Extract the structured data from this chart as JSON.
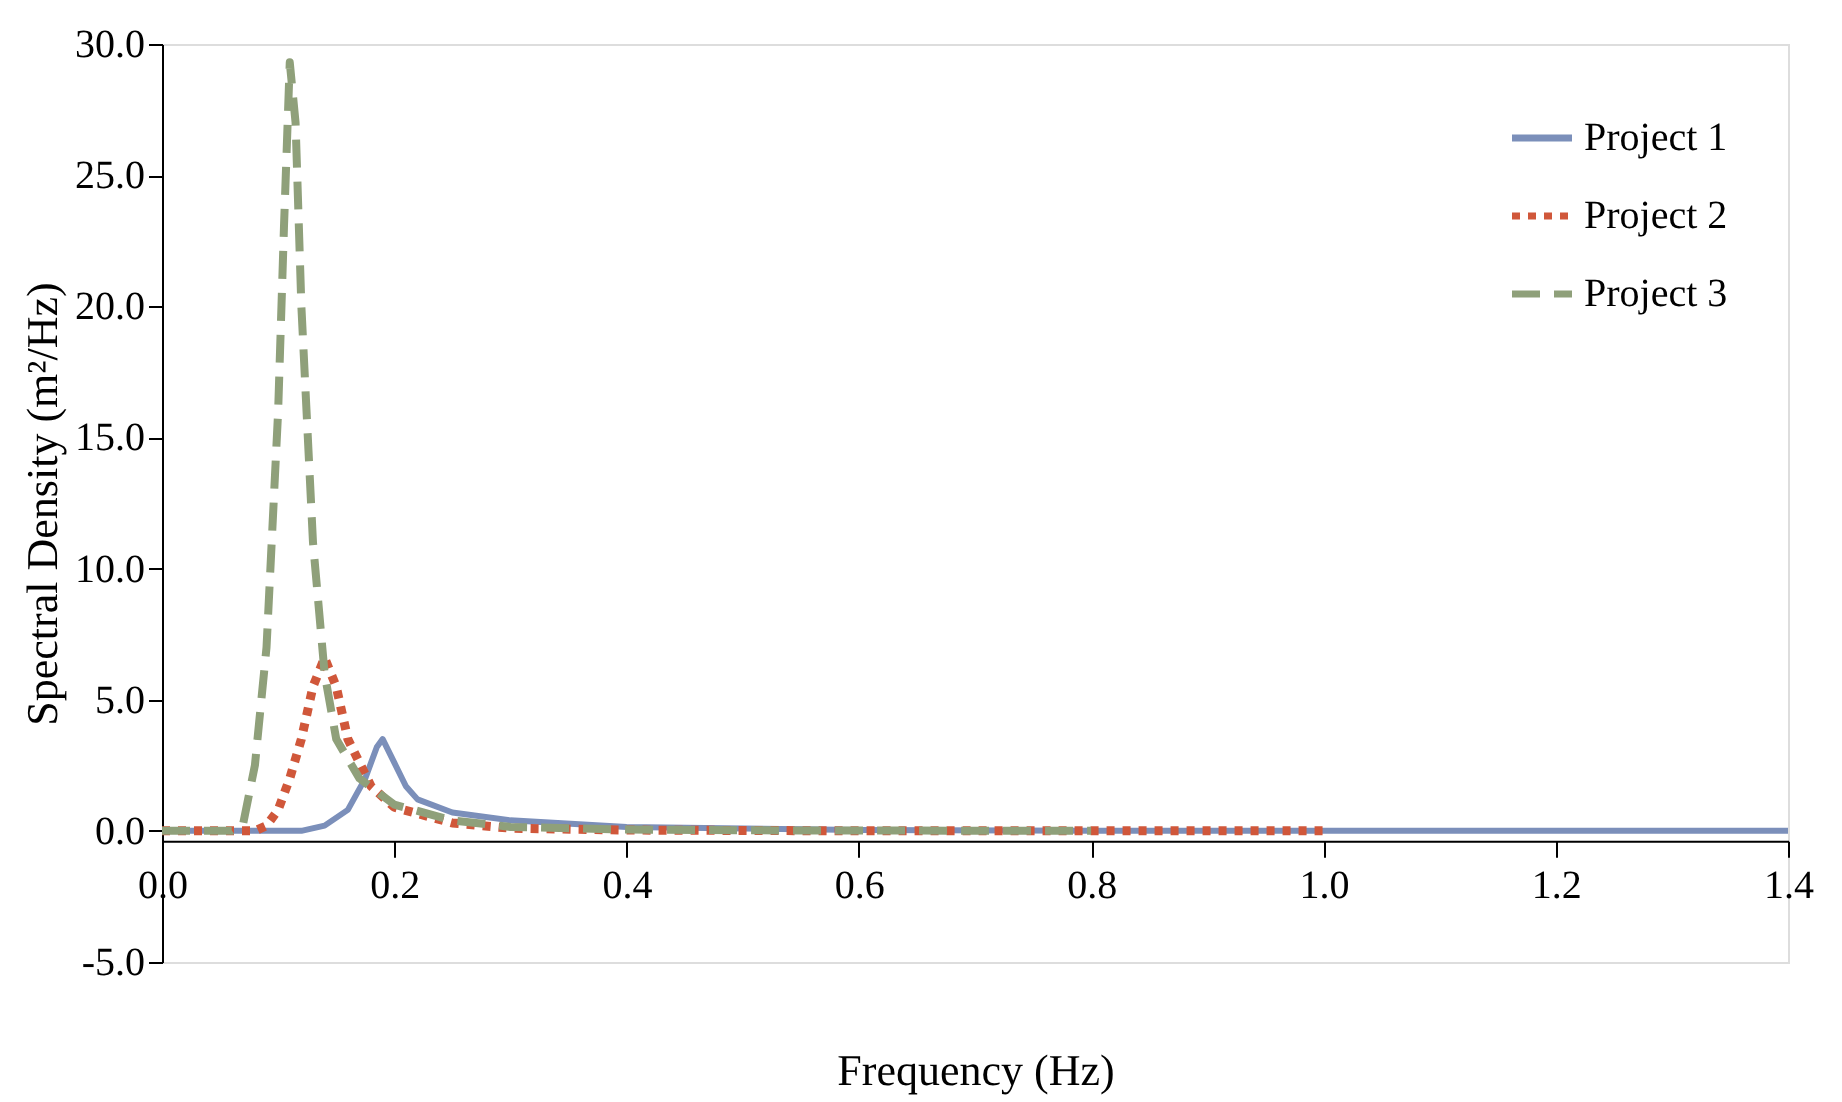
{
  "chart_data": {
    "type": "line",
    "xlabel": "Frequency (Hz)",
    "ylabel": "Spectral Density (m²/Hz)",
    "xlim": [
      0,
      1.4
    ],
    "xticks": [
      {
        "value": 0,
        "label": "0.0"
      },
      0.2,
      0.4,
      0.6,
      0.8,
      {
        "value": 1,
        "label": "1.0"
      },
      1.2,
      1.4
    ],
    "ylim": [
      -5,
      30
    ],
    "yticks": [
      {
        "value": -5,
        "label": "-5.0"
      },
      {
        "value": 0,
        "label": "0.0"
      },
      {
        "value": 5,
        "label": "5.0"
      },
      {
        "value": 10,
        "label": "10.0"
      },
      {
        "value": 15,
        "label": "15.0"
      },
      {
        "value": 20,
        "label": "20.0"
      },
      {
        "value": 25,
        "label": "25.0"
      },
      {
        "value": 30,
        "label": "30.0"
      }
    ],
    "grid": false,
    "legend": "top right",
    "marker": "none",
    "series": [
      {
        "name": "Project 1",
        "color": "#7b8fba",
        "line_style": "solid",
        "x": [
          0,
          0.12,
          0.14,
          0.16,
          0.175,
          0.185,
          0.19,
          0.2,
          0.21,
          0.22,
          0.25,
          0.3,
          0.4,
          0.6,
          0.8,
          1.4
        ],
        "values": [
          0,
          0,
          0.2,
          0.8,
          2,
          3.2,
          3.5,
          2.6,
          1.7,
          1.2,
          0.7,
          0.4,
          0.15,
          0.03,
          0,
          0
        ]
      },
      {
        "name": "Project 2",
        "color": "#d0573a",
        "line_style": "dotted",
        "x": [
          0,
          0.08,
          0.09,
          0.1,
          0.11,
          0.12,
          0.13,
          0.14,
          0.15,
          0.16,
          0.18,
          0.2,
          0.25,
          0.3,
          0.4,
          0.6,
          1.0
        ],
        "values": [
          0,
          0,
          0.2,
          0.8,
          2,
          3.5,
          5.5,
          6.6,
          5.5,
          3.5,
          1.7,
          0.9,
          0.3,
          0.1,
          0.03,
          0,
          0
        ]
      },
      {
        "name": "Project 3",
        "color": "#8fa07a",
        "line_style": "dashed",
        "x": [
          0,
          0.06,
          0.07,
          0.08,
          0.09,
          0.1,
          0.105,
          0.11,
          0.115,
          0.12,
          0.13,
          0.14,
          0.15,
          0.17,
          0.2,
          0.25,
          0.3,
          0.4,
          0.5,
          0.8
        ],
        "values": [
          0,
          0,
          0.3,
          2.5,
          7,
          16,
          23,
          29.3,
          27,
          20,
          11,
          6,
          3.5,
          2,
          1,
          0.4,
          0.15,
          0.05,
          0.02,
          0
        ]
      }
    ]
  }
}
